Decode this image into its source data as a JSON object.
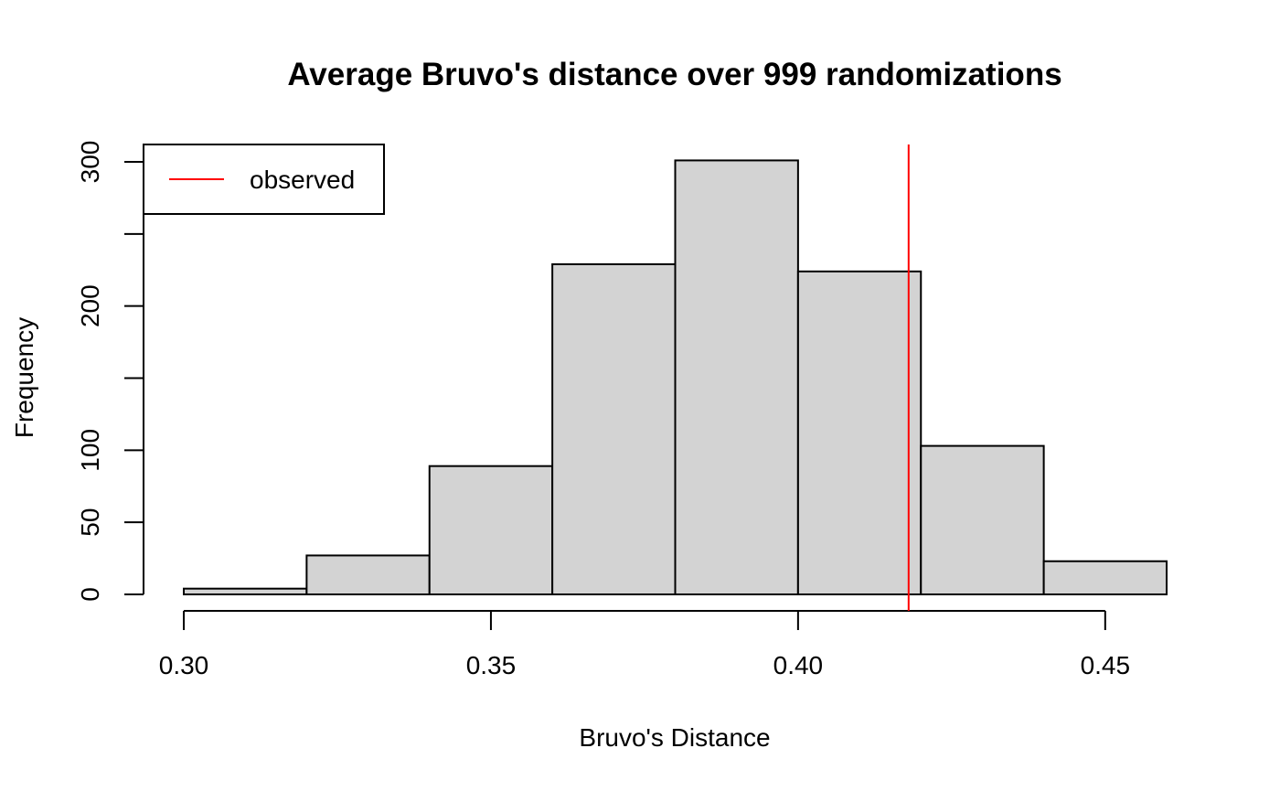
{
  "chart_data": {
    "type": "bar",
    "title": "Average Bruvo's distance over 999 randomizations",
    "xlabel": "Bruvo's Distance",
    "ylabel": "Frequency",
    "xlim": [
      0.3,
      0.46
    ],
    "ylim": [
      0,
      300
    ],
    "x_ticks": [
      {
        "value": 0.3,
        "label": "0.30"
      },
      {
        "value": 0.35,
        "label": "0.35"
      },
      {
        "value": 0.4,
        "label": "0.40"
      },
      {
        "value": 0.45,
        "label": "0.45"
      }
    ],
    "y_ticks": [
      {
        "value": 0,
        "label": "0"
      },
      {
        "value": 50,
        "label": "50"
      },
      {
        "value": 100,
        "label": "100"
      },
      {
        "value": 150,
        "label": ""
      },
      {
        "value": 200,
        "label": "200"
      },
      {
        "value": 250,
        "label": ""
      },
      {
        "value": 300,
        "label": "300"
      }
    ],
    "bins": [
      {
        "x0": 0.3,
        "x1": 0.32,
        "count": 4
      },
      {
        "x0": 0.32,
        "x1": 0.34,
        "count": 27
      },
      {
        "x0": 0.34,
        "x1": 0.36,
        "count": 89
      },
      {
        "x0": 0.36,
        "x1": 0.38,
        "count": 229
      },
      {
        "x0": 0.38,
        "x1": 0.4,
        "count": 301
      },
      {
        "x0": 0.4,
        "x1": 0.42,
        "count": 224
      },
      {
        "x0": 0.42,
        "x1": 0.44,
        "count": 103
      },
      {
        "x0": 0.44,
        "x1": 0.46,
        "count": 23
      }
    ],
    "observed": {
      "value": 0.418,
      "label": "observed",
      "color": "#ff0000"
    },
    "bar_fill": "#d3d3d3",
    "legend": {
      "placement": "top-left",
      "entries": [
        "observed"
      ]
    },
    "grid": false
  }
}
